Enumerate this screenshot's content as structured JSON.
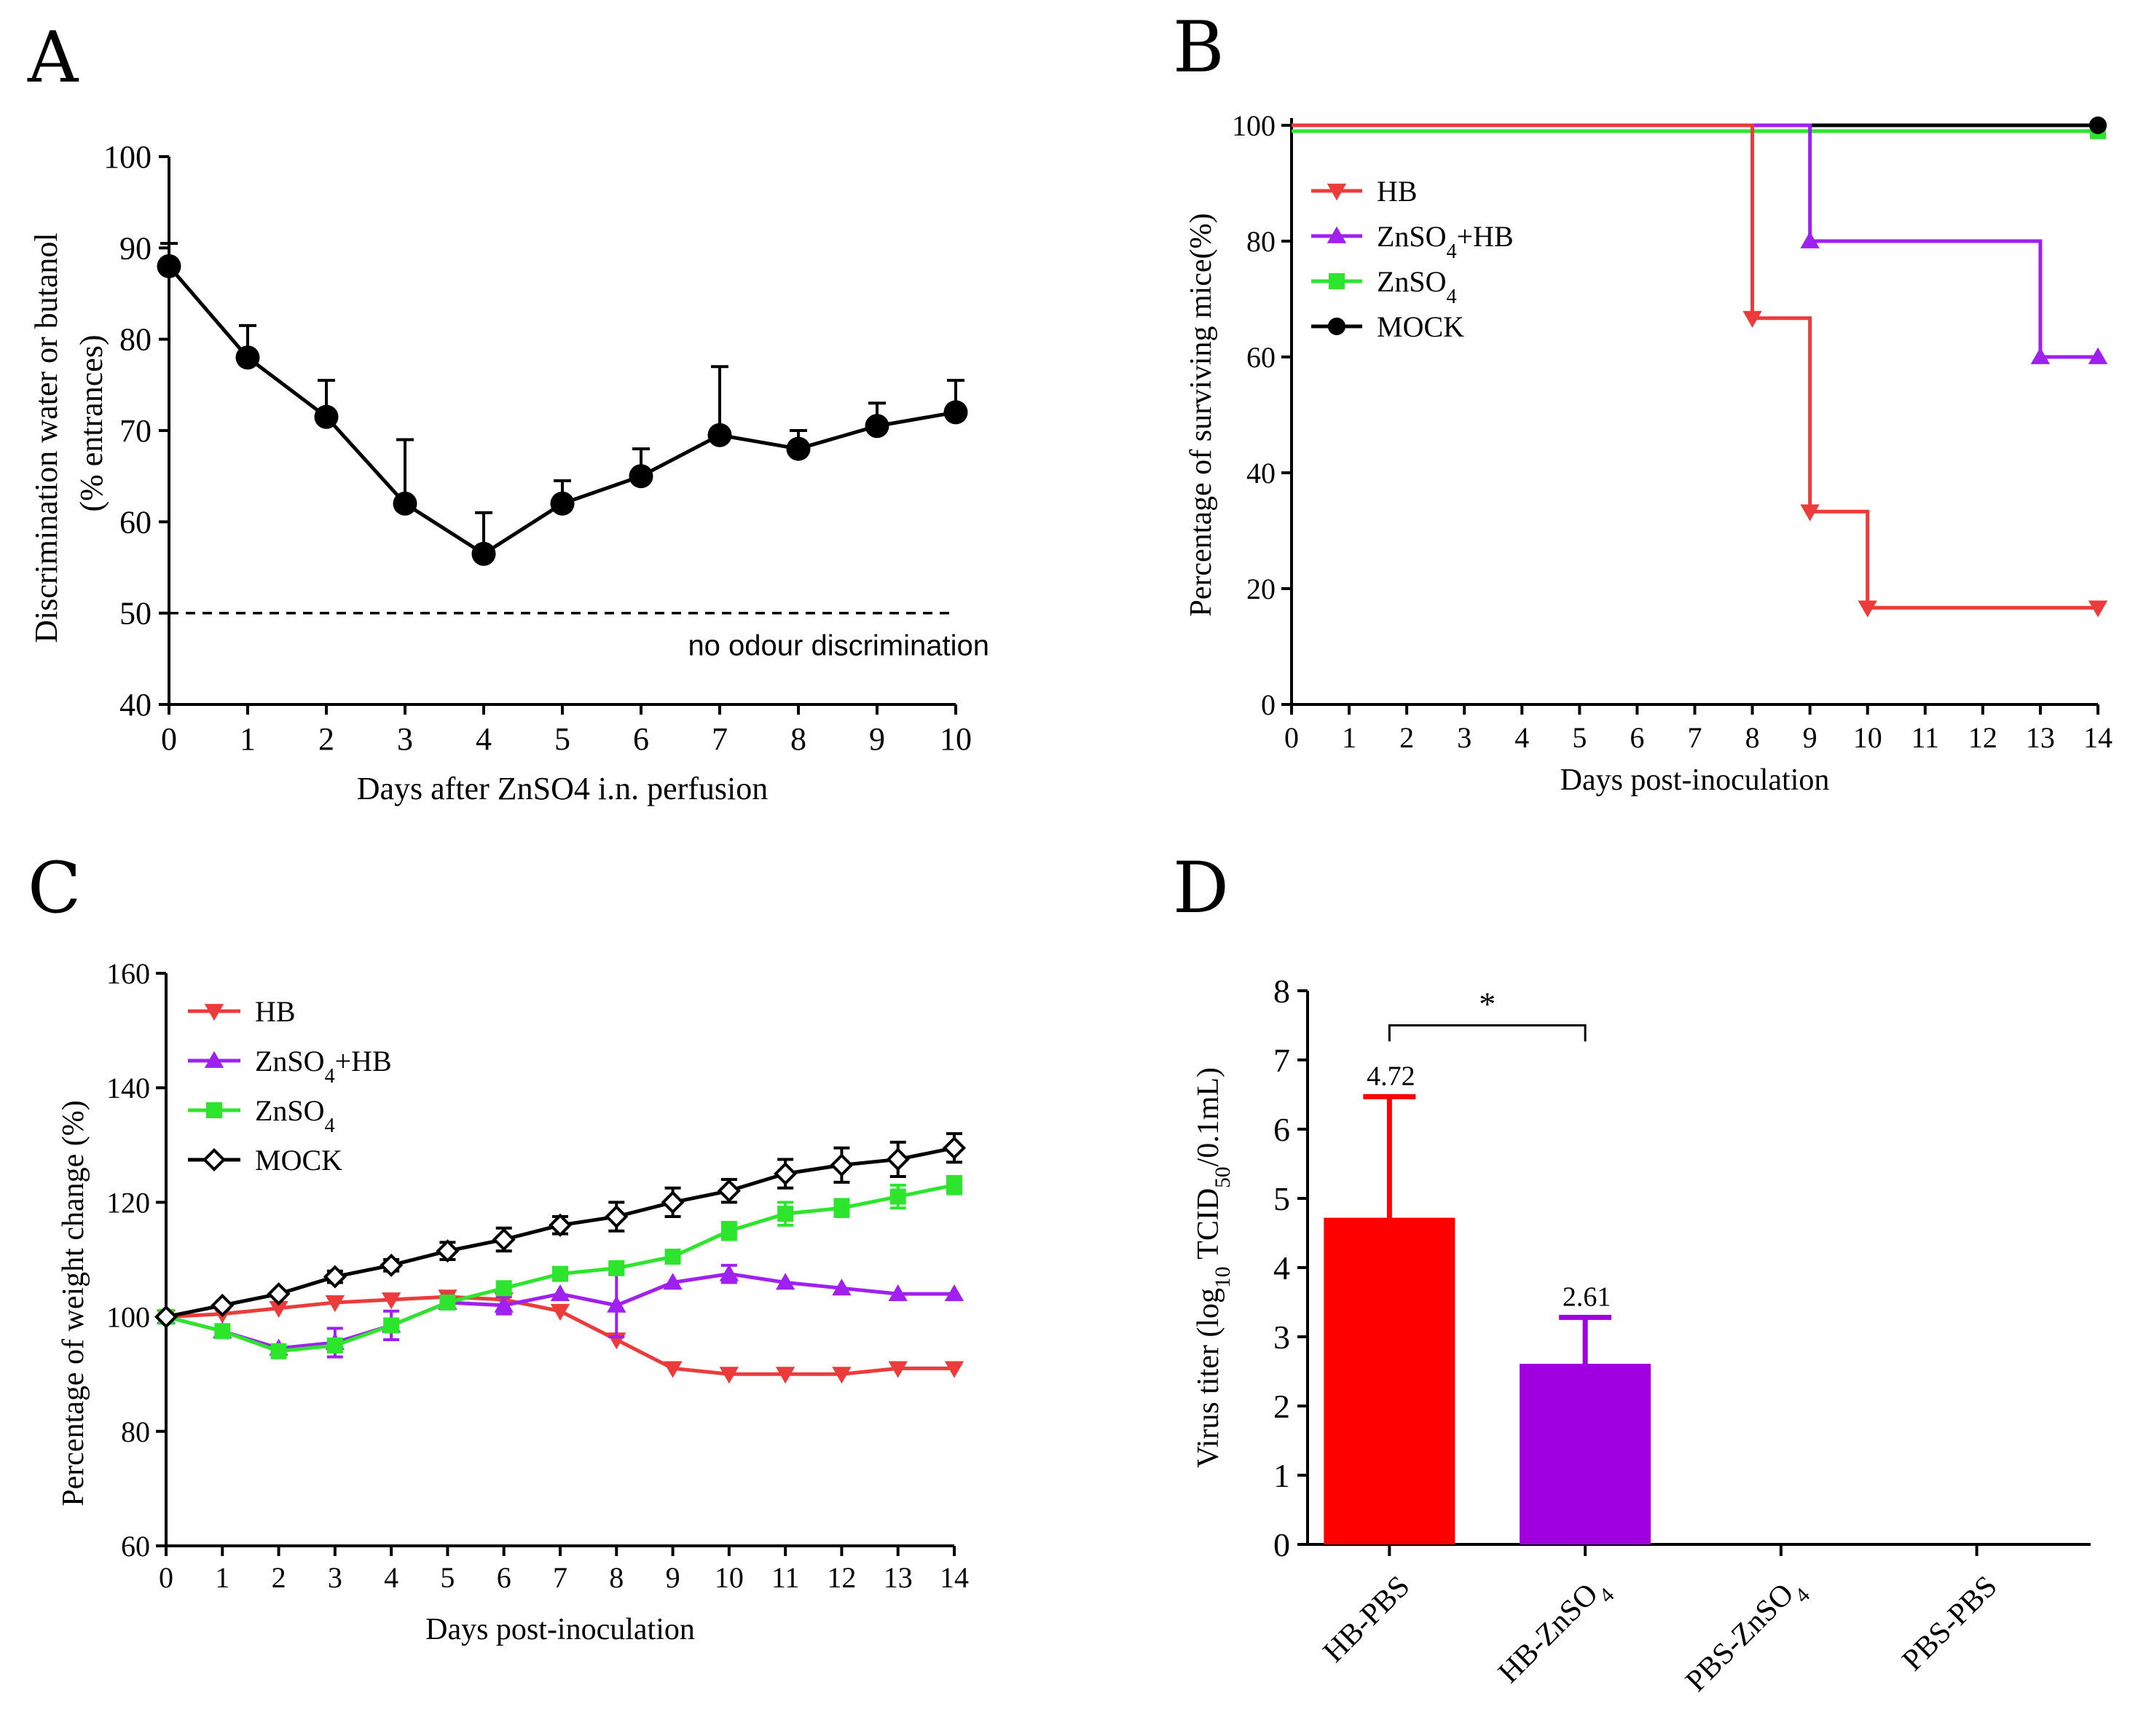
{
  "panels": {
    "A": "A",
    "B": "B",
    "C": "C",
    "D": "D"
  },
  "colors": {
    "HB": "#ec3b3b",
    "ZnSO4+HB": "#a020f0",
    "ZnSO4": "#2ee52e",
    "MOCK": "#000000",
    "barHB": "#ff0000",
    "barZn": "#a000e0"
  },
  "chart_data": [
    {
      "panel": "A",
      "type": "line",
      "title": "",
      "xlabel": "Days after ZnSO4 i.n. perfusion",
      "ylabel_line1": "Discrimination water or butanol",
      "ylabel_line2": "(% entrances)",
      "xlim": [
        0,
        10
      ],
      "ylim": [
        40,
        100
      ],
      "x_ticks": [
        0,
        1,
        2,
        3,
        4,
        5,
        6,
        7,
        8,
        9,
        10
      ],
      "y_ticks": [
        40,
        50,
        60,
        70,
        80,
        90,
        100
      ],
      "x": [
        0,
        1,
        2,
        3,
        4,
        5,
        6,
        7,
        8,
        9,
        10
      ],
      "y": [
        88,
        78,
        71.5,
        62,
        56.5,
        62,
        65,
        69.5,
        68,
        70.5,
        72
      ],
      "error": [
        2.5,
        3.5,
        4,
        7,
        4.5,
        2.5,
        3,
        7.5,
        2,
        2.5,
        3.5
      ],
      "reference_line": {
        "y": 50,
        "label": "no odour discrimination"
      }
    },
    {
      "panel": "B",
      "type": "line",
      "subtype": "survival-step",
      "xlabel": "Days post-inoculation",
      "ylabel": "Percentage of surviving mice(%)",
      "xlim": [
        0,
        14
      ],
      "ylim": [
        0,
        100
      ],
      "x_ticks": [
        0,
        1,
        2,
        3,
        4,
        5,
        6,
        7,
        8,
        9,
        10,
        11,
        12,
        13,
        14
      ],
      "y_ticks": [
        0,
        20,
        40,
        60,
        80,
        100
      ],
      "series": [
        {
          "name": "HB",
          "sub": "",
          "after": "",
          "marker": "triangle-down",
          "color_key": "HB",
          "steps": [
            [
              0,
              100
            ],
            [
              8,
              66.7
            ],
            [
              9,
              33.3
            ],
            [
              10,
              16.7
            ],
            [
              14,
              16.7
            ]
          ]
        },
        {
          "name": "ZnSO",
          "sub": "4",
          "after": "+HB",
          "marker": "triangle-up",
          "color_key": "ZnSO4+HB",
          "steps": [
            [
              0,
              100
            ],
            [
              9,
              80
            ],
            [
              13,
              60
            ],
            [
              14,
              60
            ]
          ]
        },
        {
          "name": "ZnSO",
          "sub": "4",
          "after": "",
          "marker": "square",
          "color_key": "ZnSO4",
          "steps": [
            [
              0,
              99
            ],
            [
              14,
              99
            ]
          ]
        },
        {
          "name": "MOCK",
          "sub": "",
          "after": "",
          "marker": "circle",
          "color_key": "MOCK",
          "steps": [
            [
              0,
              100
            ],
            [
              14,
              100
            ]
          ]
        }
      ]
    },
    {
      "panel": "C",
      "type": "line",
      "xlabel": "Days post-inoculation",
      "ylabel": "Percentage of weight change (%)",
      "xlim": [
        0,
        14
      ],
      "ylim": [
        60,
        160
      ],
      "x_ticks": [
        0,
        1,
        2,
        3,
        4,
        5,
        6,
        7,
        8,
        9,
        10,
        11,
        12,
        13,
        14
      ],
      "y_ticks": [
        60,
        80,
        100,
        120,
        140,
        160
      ],
      "series": [
        {
          "name": "HB",
          "sub": "",
          "after": "",
          "marker": "triangle-down",
          "color_key": "HB",
          "x": [
            0,
            1,
            2,
            3,
            4,
            5,
            6,
            7,
            8,
            9,
            10,
            11,
            12,
            13,
            14
          ],
          "y": [
            100,
            100.5,
            101.5,
            102.5,
            103,
            103.5,
            103,
            101,
            96,
            91,
            90,
            90,
            90,
            91,
            91
          ],
          "error": [
            0,
            0,
            0,
            0,
            0,
            0,
            0,
            0,
            0,
            0,
            0,
            0,
            0,
            0,
            0
          ]
        },
        {
          "name": "ZnSO",
          "sub": "4",
          "after": "+HB",
          "marker": "triangle-up",
          "color_key": "ZnSO4+HB",
          "x": [
            0,
            1,
            2,
            3,
            4,
            5,
            6,
            7,
            8,
            9,
            10,
            11,
            12,
            13,
            14
          ],
          "y": [
            100,
            97.5,
            94.5,
            95.5,
            98.5,
            102.5,
            102,
            104,
            102,
            106,
            107.5,
            106,
            105,
            104,
            104
          ],
          "error": [
            0,
            0,
            0,
            2.5,
            2.5,
            0,
            1.5,
            0,
            5.5,
            0,
            1.5,
            0,
            0,
            0,
            0
          ]
        },
        {
          "name": "ZnSO",
          "sub": "4",
          "after": "",
          "marker": "square",
          "color_key": "ZnSO4",
          "x": [
            0,
            1,
            2,
            3,
            4,
            5,
            6,
            7,
            8,
            9,
            10,
            11,
            12,
            13,
            14
          ],
          "y": [
            100,
            97.5,
            94,
            95,
            98.5,
            102.5,
            105,
            107.5,
            108.5,
            110.5,
            115,
            118,
            119,
            121,
            123
          ],
          "error": [
            0,
            0,
            0,
            0,
            0,
            0,
            0,
            0,
            0,
            0,
            1.5,
            2,
            1.5,
            2,
            1.5
          ]
        },
        {
          "name": "MOCK",
          "sub": "",
          "after": "",
          "marker": "diamond-open",
          "color_key": "MOCK",
          "x": [
            0,
            1,
            2,
            3,
            4,
            5,
            6,
            7,
            8,
            9,
            10,
            11,
            12,
            13,
            14
          ],
          "y": [
            100,
            102,
            104,
            107,
            109,
            111.5,
            113.5,
            116,
            117.5,
            120,
            122,
            125,
            126.5,
            127.5,
            129.5
          ],
          "error": [
            0,
            0,
            0,
            1,
            1,
            1.5,
            2,
            1.5,
            2.5,
            2.5,
            2,
            2.5,
            3,
            3,
            2.5
          ]
        }
      ]
    },
    {
      "panel": "D",
      "type": "bar",
      "ylabel_pre": "Virus titer (log",
      "ylabel_sub1": "10",
      "ylabel_mid": " TCID",
      "ylabel_sub2": "50",
      "ylabel_post": "/0.1mL)",
      "ylim": [
        0,
        8
      ],
      "y_ticks": [
        0,
        1,
        2,
        3,
        4,
        5,
        6,
        7,
        8
      ],
      "categories": [
        {
          "main": "HB-PBS",
          "sub": "",
          "after": ""
        },
        {
          "main": "HB-ZnSO",
          "sub": "4",
          "after": ""
        },
        {
          "main": "PBS-ZnSO",
          "sub": "4",
          "after": ""
        },
        {
          "main": "PBS-PBS",
          "sub": "",
          "after": ""
        }
      ],
      "values": [
        4.72,
        2.61,
        0,
        0
      ],
      "error": [
        1.75,
        0.67,
        0,
        0
      ],
      "value_labels": [
        "4.72",
        "2.61",
        "",
        ""
      ],
      "bar_color_keys": [
        "barHB",
        "barZn",
        "barZn",
        "barZn"
      ],
      "significance": {
        "between": [
          0,
          1
        ],
        "label": "*",
        "y": 7.5
      }
    }
  ]
}
